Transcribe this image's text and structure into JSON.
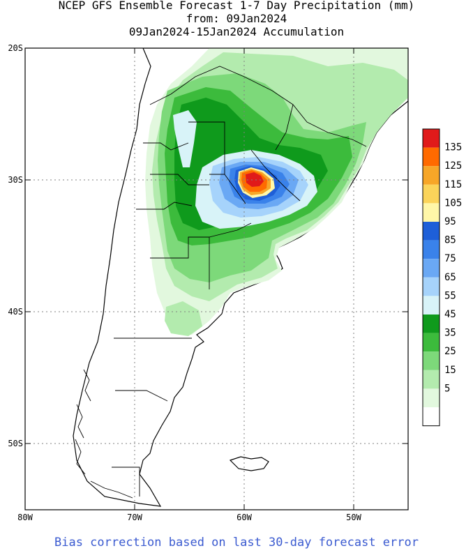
{
  "title": {
    "line1": "NCEP GFS Ensemble Forecast 1-7 Day Precipitation (mm)",
    "line2": "from: 09Jan2024",
    "line3": "09Jan2024-15Jan2024 Accumulation"
  },
  "axes": {
    "lat_labels": [
      "20S",
      "30S",
      "40S",
      "50S"
    ],
    "lon_labels": [
      "80W",
      "70W",
      "60W",
      "50W"
    ]
  },
  "legend": {
    "labels": [
      "135",
      "125",
      "115",
      "105",
      "95",
      "85",
      "75",
      "65",
      "55",
      "45",
      "35",
      "25",
      "15",
      "5"
    ],
    "colors": [
      "#e01a1a",
      "#ff6a00",
      "#f7a628",
      "#fbd45a",
      "#fff7a8",
      "#1e5fd8",
      "#3a82ea",
      "#6aa8f4",
      "#a6d3fb",
      "#d8f3f8",
      "#0f9a1c",
      "#3cbb3c",
      "#7dd97a",
      "#b3ebae",
      "#e2f8de",
      "#ffffff"
    ]
  },
  "footnote": "Bias correction based on last 30-day forecast error"
}
